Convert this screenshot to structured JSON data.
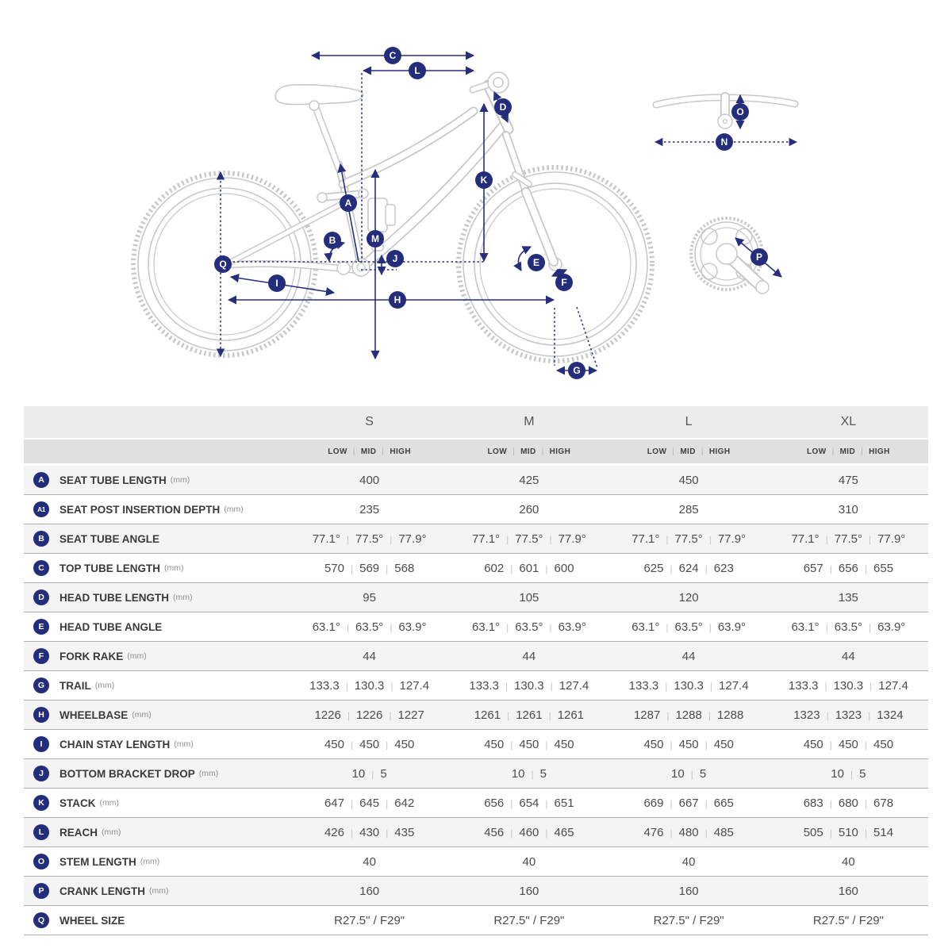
{
  "diagram": {
    "badges": {
      "A": "A",
      "A1": "A1",
      "B": "B",
      "C": "C",
      "D": "D",
      "E": "E",
      "F": "F",
      "G": "G",
      "H": "H",
      "I": "I",
      "J": "J",
      "K": "K",
      "L": "L",
      "M": "M",
      "N": "N",
      "O": "O",
      "P": "P",
      "Q": "Q"
    },
    "colors": {
      "accent": "#232d7b",
      "frame_gray": "#c6c8ca"
    }
  },
  "table": {
    "sizes": [
      "S",
      "M",
      "L",
      "XL"
    ],
    "level_labels": [
      "LOW",
      "MID",
      "HIGH"
    ],
    "separator": "|",
    "rows": [
      {
        "badge": "A",
        "label": "SEAT TUBE LENGTH",
        "unit": "(mm)",
        "values": [
          [
            "400"
          ],
          [
            "425"
          ],
          [
            "450"
          ],
          [
            "475"
          ]
        ]
      },
      {
        "badge": "A1",
        "label": "SEAT POST INSERTION DEPTH",
        "unit": "(mm)",
        "values": [
          [
            "235"
          ],
          [
            "260"
          ],
          [
            "285"
          ],
          [
            "310"
          ]
        ]
      },
      {
        "badge": "B",
        "label": "SEAT TUBE ANGLE",
        "unit": "",
        "values": [
          [
            "77.1°",
            "77.5°",
            "77.9°"
          ],
          [
            "77.1°",
            "77.5°",
            "77.9°"
          ],
          [
            "77.1°",
            "77.5°",
            "77.9°"
          ],
          [
            "77.1°",
            "77.5°",
            "77.9°"
          ]
        ]
      },
      {
        "badge": "C",
        "label": "TOP TUBE LENGTH",
        "unit": "(mm)",
        "values": [
          [
            "570",
            "569",
            "568"
          ],
          [
            "602",
            "601",
            "600"
          ],
          [
            "625",
            "624",
            "623"
          ],
          [
            "657",
            "656",
            "655"
          ]
        ]
      },
      {
        "badge": "D",
        "label": "HEAD TUBE LENGTH",
        "unit": "(mm)",
        "values": [
          [
            "95"
          ],
          [
            "105"
          ],
          [
            "120"
          ],
          [
            "135"
          ]
        ]
      },
      {
        "badge": "E",
        "label": "HEAD TUBE ANGLE",
        "unit": "",
        "values": [
          [
            "63.1°",
            "63.5°",
            "63.9°"
          ],
          [
            "63.1°",
            "63.5°",
            "63.9°"
          ],
          [
            "63.1°",
            "63.5°",
            "63.9°"
          ],
          [
            "63.1°",
            "63.5°",
            "63.9°"
          ]
        ]
      },
      {
        "badge": "F",
        "label": "FORK RAKE",
        "unit": "(mm)",
        "values": [
          [
            "44"
          ],
          [
            "44"
          ],
          [
            "44"
          ],
          [
            "44"
          ]
        ]
      },
      {
        "badge": "G",
        "label": "TRAIL",
        "unit": "(mm)",
        "values": [
          [
            "133.3",
            "130.3",
            "127.4"
          ],
          [
            "133.3",
            "130.3",
            "127.4"
          ],
          [
            "133.3",
            "130.3",
            "127.4"
          ],
          [
            "133.3",
            "130.3",
            "127.4"
          ]
        ]
      },
      {
        "badge": "H",
        "label": "WHEELBASE",
        "unit": "(mm)",
        "values": [
          [
            "1226",
            "1226",
            "1227"
          ],
          [
            "1261",
            "1261",
            "1261"
          ],
          [
            "1287",
            "1288",
            "1288"
          ],
          [
            "1323",
            "1323",
            "1324"
          ]
        ]
      },
      {
        "badge": "I",
        "label": "CHAIN STAY LENGTH",
        "unit": "(mm)",
        "values": [
          [
            "450",
            "450",
            "450"
          ],
          [
            "450",
            "450",
            "450"
          ],
          [
            "450",
            "450",
            "450"
          ],
          [
            "450",
            "450",
            "450"
          ]
        ]
      },
      {
        "badge": "J",
        "label": "BOTTOM BRACKET DROP",
        "unit": "(mm)",
        "values": [
          [
            "10",
            "5"
          ],
          [
            "10",
            "5"
          ],
          [
            "10",
            "5"
          ],
          [
            "10",
            "5"
          ]
        ]
      },
      {
        "badge": "K",
        "label": "STACK",
        "unit": "(mm)",
        "values": [
          [
            "647",
            "645",
            "642"
          ],
          [
            "656",
            "654",
            "651"
          ],
          [
            "669",
            "667",
            "665"
          ],
          [
            "683",
            "680",
            "678"
          ]
        ]
      },
      {
        "badge": "L",
        "label": "REACH",
        "unit": "(mm)",
        "values": [
          [
            "426",
            "430",
            "435"
          ],
          [
            "456",
            "460",
            "465"
          ],
          [
            "476",
            "480",
            "485"
          ],
          [
            "505",
            "510",
            "514"
          ]
        ]
      },
      {
        "badge": "O",
        "label": "STEM LENGTH",
        "unit": "(mm)",
        "values": [
          [
            "40"
          ],
          [
            "40"
          ],
          [
            "40"
          ],
          [
            "40"
          ]
        ]
      },
      {
        "badge": "P",
        "label": "CRANK LENGTH",
        "unit": "(mm)",
        "values": [
          [
            "160"
          ],
          [
            "160"
          ],
          [
            "160"
          ],
          [
            "160"
          ]
        ]
      },
      {
        "badge": "Q",
        "label": "WHEEL SIZE",
        "unit": "",
        "values": [
          [
            "R27.5\" / F29\""
          ],
          [
            "R27.5\" / F29\""
          ],
          [
            "R27.5\" / F29\""
          ],
          [
            "R27.5\" / F29\""
          ]
        ]
      }
    ]
  }
}
